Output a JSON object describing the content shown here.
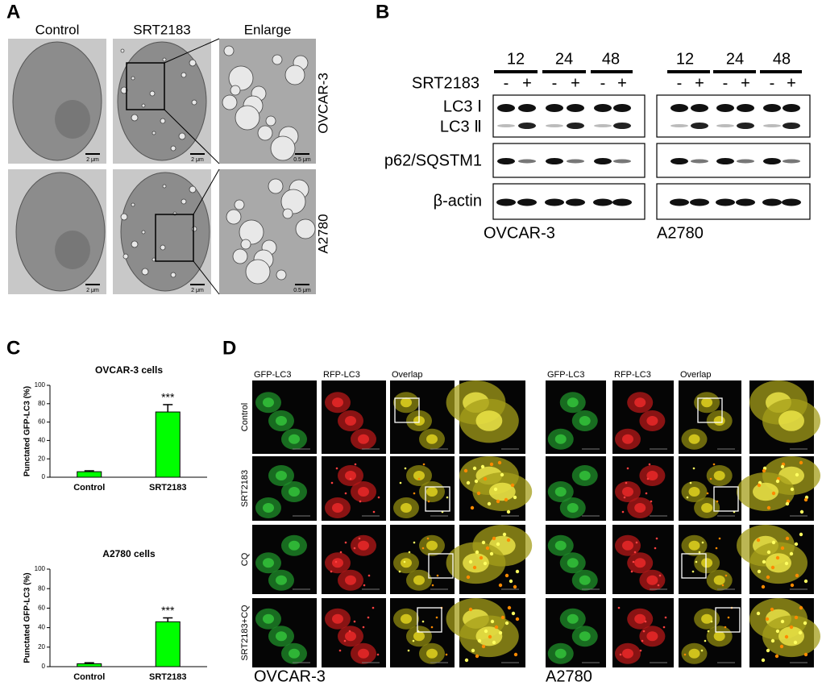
{
  "panel_labels": [
    "A",
    "B",
    "C",
    "D"
  ],
  "cell_lines": [
    "OVCAR-3",
    "A2780"
  ],
  "panel_a": {
    "columns": [
      "Control",
      "SRT2183",
      "Enlarge"
    ],
    "scale_bars": [
      "2 μm",
      "0.5 μm"
    ]
  },
  "panel_b": {
    "timepoints": [
      12,
      24,
      48
    ],
    "treatment": "SRT2183",
    "signs": [
      "-",
      "+"
    ],
    "proteins": [
      "LC3 Ⅰ",
      "LC3 Ⅱ",
      "p62/SQSTM1",
      "β-actin"
    ]
  },
  "panel_d": {
    "channels": [
      "GFP-LC3",
      "RFP-LC3",
      "Overlap"
    ],
    "conditions": [
      "Control",
      "SRT2183",
      "CQ",
      "SRT2183+CQ"
    ]
  },
  "chart_data": [
    {
      "type": "bar",
      "title": "OVCAR-3 cells",
      "ylabel": "Punctated GFP-LC3 (%)",
      "categories": [
        "Control",
        "SRT2183"
      ],
      "values": [
        6,
        71
      ],
      "errors": [
        1,
        8
      ],
      "color": "#00ff00",
      "ylim": [
        0,
        100
      ],
      "yticks": [
        0,
        20,
        40,
        60,
        80,
        100
      ],
      "annotation": "***"
    },
    {
      "type": "bar",
      "title": "A2780 cells",
      "ylabel": "Punctated GFP-LC3 (%)",
      "categories": [
        "Control",
        "SRT2183"
      ],
      "values": [
        3,
        46
      ],
      "errors": [
        1,
        4
      ],
      "color": "#00ff00",
      "ylim": [
        0,
        100
      ],
      "yticks": [
        0,
        20,
        40,
        60,
        80,
        100
      ],
      "annotation": "***"
    }
  ]
}
